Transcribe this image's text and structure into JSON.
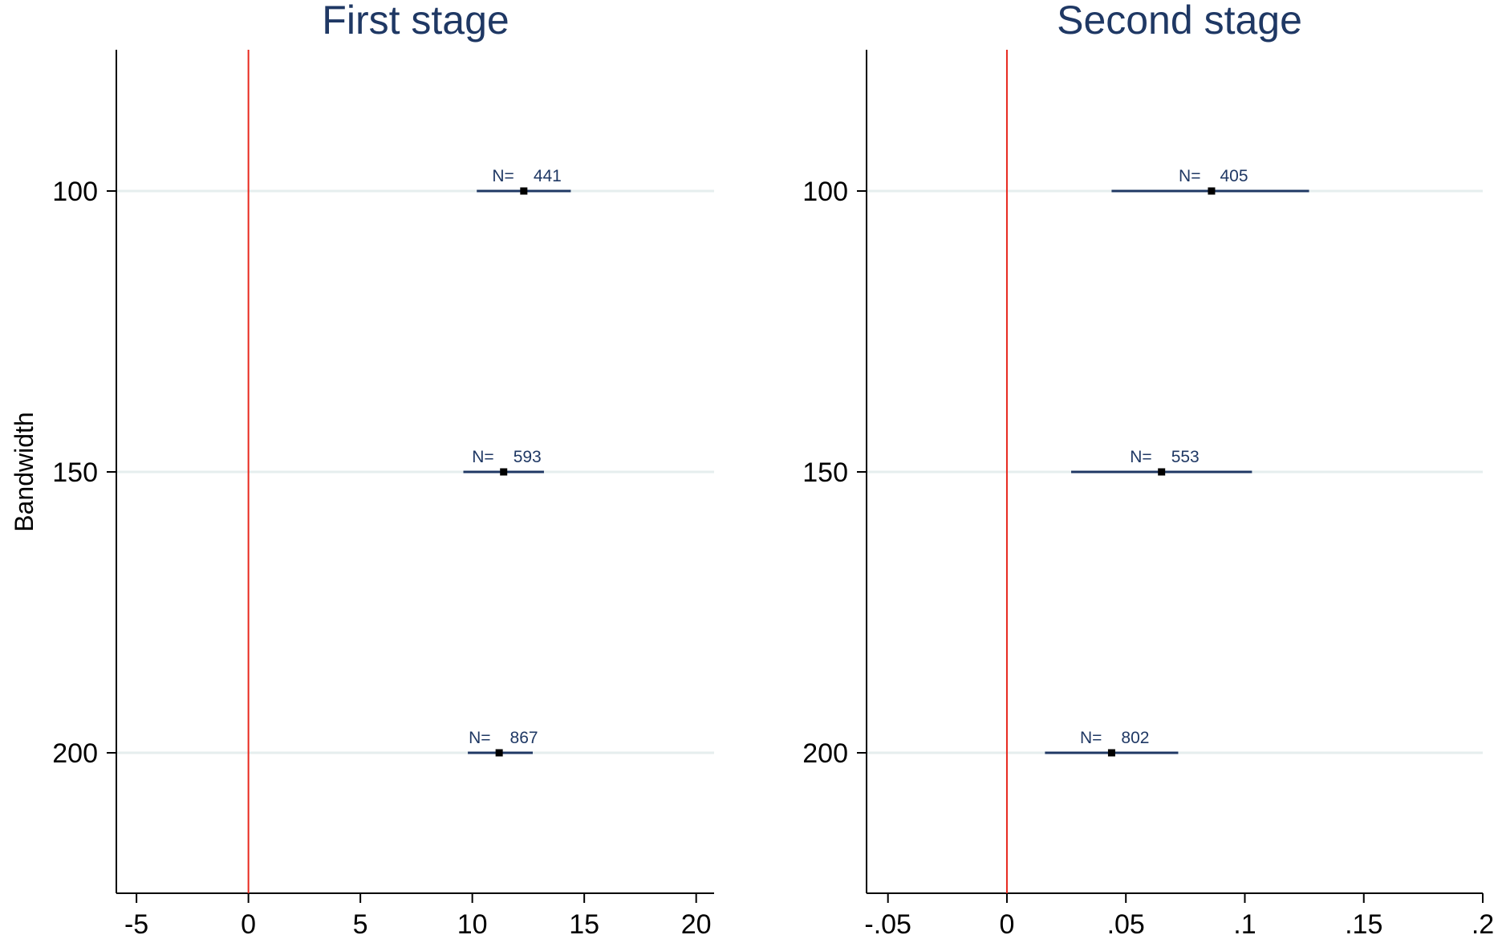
{
  "chart_data": [
    {
      "type": "scatter",
      "subtype": "coefficient-plot-with-confidence-intervals",
      "title": "First stage",
      "ylabel": "Bandwidth",
      "xlabel": "",
      "y_categories": [
        "100",
        "150",
        "200"
      ],
      "x_ticks": [
        "-5",
        "0",
        "5",
        "10",
        "15",
        "20"
      ],
      "x_tick_values": [
        -5,
        0,
        5,
        10,
        15,
        20
      ],
      "xlim": [
        -5.9,
        20.8
      ],
      "ylim": [
        75,
        225
      ],
      "reference_line": {
        "x": 0,
        "color": "#e8281e"
      },
      "grid": "horizontal",
      "n_prefix": "N=",
      "points": [
        {
          "bandwidth": 100,
          "estimate": 12.3,
          "ci_low": 10.2,
          "ci_high": 14.4,
          "n": "441"
        },
        {
          "bandwidth": 150,
          "estimate": 11.4,
          "ci_low": 9.6,
          "ci_high": 13.2,
          "n": "593"
        },
        {
          "bandwidth": 200,
          "estimate": 11.2,
          "ci_low": 9.8,
          "ci_high": 12.7,
          "n": "867"
        }
      ]
    },
    {
      "type": "scatter",
      "subtype": "coefficient-plot-with-confidence-intervals",
      "title": "Second stage",
      "ylabel": "",
      "xlabel": "",
      "y_categories": [
        "100",
        "150",
        "200"
      ],
      "x_ticks": [
        "-.05",
        "0",
        ".05",
        ".1",
        ".15",
        ".2"
      ],
      "x_tick_values": [
        -0.05,
        0,
        0.05,
        0.1,
        0.15,
        0.2
      ],
      "xlim": [
        -0.059,
        0.2
      ],
      "ylim": [
        75,
        225
      ],
      "reference_line": {
        "x": 0,
        "color": "#e8281e"
      },
      "grid": "horizontal",
      "n_prefix": "N=",
      "points": [
        {
          "bandwidth": 100,
          "estimate": 0.086,
          "ci_low": 0.044,
          "ci_high": 0.127,
          "n": "405"
        },
        {
          "bandwidth": 150,
          "estimate": 0.065,
          "ci_low": 0.027,
          "ci_high": 0.103,
          "n": "553"
        },
        {
          "bandwidth": 200,
          "estimate": 0.044,
          "ci_low": 0.016,
          "ci_high": 0.072,
          "n": "802"
        }
      ]
    }
  ],
  "colors": {
    "title": "#1f3864",
    "ci_line": "#1f3864",
    "point": "#000000",
    "reference_line": "#e8281e",
    "gridline": "#e6eeee",
    "axis": "#000000",
    "n_label": "#1f3864"
  }
}
